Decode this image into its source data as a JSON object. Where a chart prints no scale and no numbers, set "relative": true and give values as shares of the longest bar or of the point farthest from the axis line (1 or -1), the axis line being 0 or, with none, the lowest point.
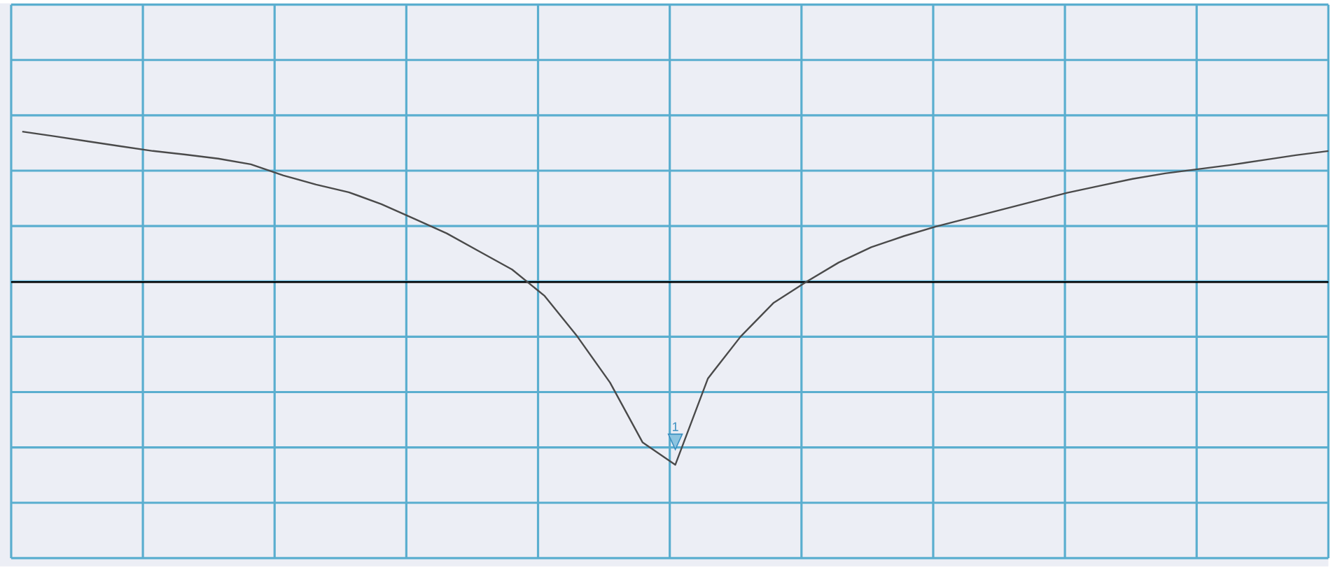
{
  "chart_data": {
    "type": "line",
    "relative": true,
    "grid": true,
    "line_style": "solid",
    "categories": [
      null,
      null,
      null,
      null,
      null,
      null,
      null,
      null,
      null,
      null,
      null,
      null,
      null,
      null,
      null,
      null,
      null,
      null,
      null,
      null,
      null,
      null,
      null,
      null,
      null,
      null,
      null,
      null,
      null,
      null,
      null,
      null,
      null,
      null,
      null,
      null,
      null,
      null,
      null,
      null,
      null
    ],
    "series": [
      {
        "color": "#4a4a4a",
        "values": [
          0.824,
          0.798,
          0.771,
          0.744,
          0.718,
          0.698,
          0.676,
          0.645,
          0.584,
          0.534,
          0.492,
          0.427,
          0.347,
          0.267,
          0.168,
          0.069,
          -0.076,
          -0.298,
          -0.55,
          -0.878,
          -1,
          -0.527,
          -0.298,
          -0.115,
          0,
          0.107,
          0.191,
          0.252,
          0.305,
          0.351,
          0.397,
          0.443,
          0.489,
          0.527,
          0.565,
          0.595,
          0.618,
          0.641,
          0.668,
          0.695,
          0.718
        ]
      }
    ],
    "annotations": [
      "1"
    ]
  }
}
